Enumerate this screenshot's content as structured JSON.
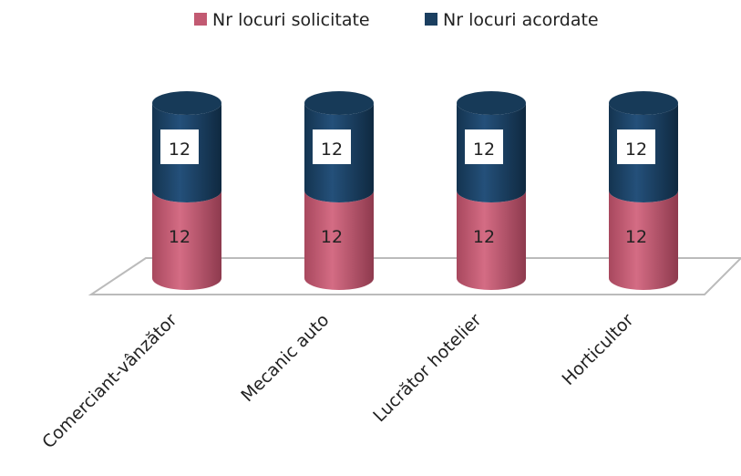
{
  "chart_data": {
    "type": "cylinder-stacked",
    "categories": [
      "Comerciant-vânzător",
      "Mecanic auto",
      "Lucrător hotelier",
      "Horticultor"
    ],
    "series": [
      {
        "name": "Nr locuri solicitate",
        "color": "#c25a72",
        "values": [
          12,
          12,
          12,
          12
        ]
      },
      {
        "name": "Nr locuri acordate",
        "color": "#1b3f60",
        "values": [
          12,
          12,
          12,
          12
        ]
      }
    ],
    "legend": "top"
  }
}
